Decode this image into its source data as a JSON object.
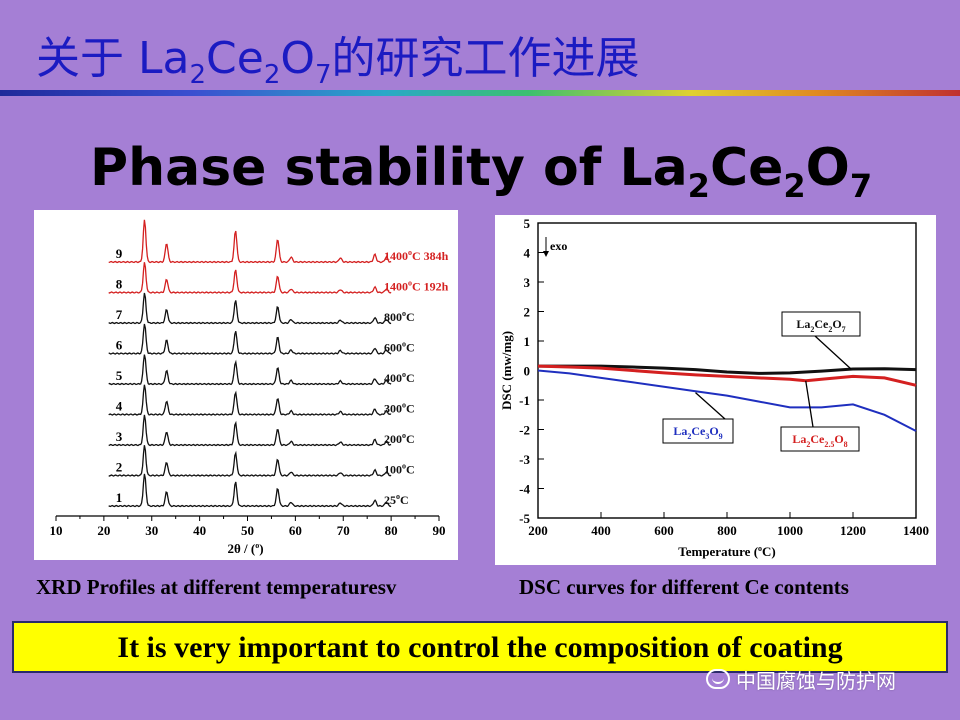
{
  "slide": {
    "title_pre": "关于 La",
    "title_s1": "2",
    "title_mid1": "Ce",
    "title_s2": "2",
    "title_mid2": "O",
    "title_s3": "7",
    "title_post": "的研究工作进展",
    "heading_pre": "Phase stability of La",
    "heading_s1": "2",
    "heading_mid1": "Ce",
    "heading_s2": "2",
    "heading_mid2": "O",
    "heading_s3": "7",
    "xrd_caption": "XRD Profiles at different temperaturesv",
    "dsc_caption": "DSC curves for different Ce contents",
    "banner": "It is very important to control the composition of coating",
    "watermark": "中国腐蚀与防护网"
  },
  "colors": {
    "background": "#a57fd5",
    "title": "#1b1bc2",
    "banner": "#ffff00",
    "xrd_black": "#111111",
    "xrd_red": "#d42020",
    "dsc_La2Ce2O7": "#111111",
    "dsc_La2Ce3O9": "#1f2fbf",
    "dsc_La2Ce2.5O8": "#d42020"
  },
  "icons": {
    "watermark": "wechat-icon"
  },
  "chart_data": [
    {
      "type": "line",
      "xlabel": "2θ / (°)",
      "xlim": [
        10,
        90
      ],
      "xticks": [
        10,
        20,
        30,
        40,
        50,
        60,
        70,
        80,
        90
      ],
      "peaks_2theta": [
        28.5,
        33.1,
        47.5,
        56.3,
        59.1,
        69.4,
        76.6,
        79.0
      ],
      "peak_heights": [
        1.0,
        0.45,
        0.75,
        0.55,
        0.12,
        0.1,
        0.18,
        0.12
      ],
      "series": [
        {
          "id": "1",
          "label": "25°C",
          "label_main": "25",
          "label_unit": "C",
          "color": "black"
        },
        {
          "id": "2",
          "label": "100°C",
          "label_main": "100",
          "label_unit": "C",
          "color": "black"
        },
        {
          "id": "3",
          "label": "200°C",
          "label_main": "200",
          "label_unit": "C",
          "color": "black"
        },
        {
          "id": "4",
          "label": "300°C",
          "label_main": "300",
          "label_unit": "C",
          "color": "black"
        },
        {
          "id": "5",
          "label": "400°C",
          "label_main": "400",
          "label_unit": "C",
          "color": "black"
        },
        {
          "id": "6",
          "label": "600°C",
          "label_main": "600",
          "label_unit": "C",
          "color": "black"
        },
        {
          "id": "7",
          "label": "800°C",
          "label_main": "800",
          "label_unit": "C",
          "color": "black"
        },
        {
          "id": "8",
          "label": "1400°C 192h",
          "label_main": "1400",
          "label_unit": "C 192h",
          "color": "red"
        },
        {
          "id": "9",
          "label": "1400°C 384h",
          "label_main": "1400",
          "label_unit": "C 384h",
          "color": "red"
        }
      ]
    },
    {
      "type": "line",
      "xlabel": "Temperature (°C)",
      "xlabel_pre": "Temperature (",
      "xlabel_post": "C)",
      "ylabel": "DSC (mw/mg)",
      "xlim": [
        200,
        1400
      ],
      "ylim": [
        -5,
        5
      ],
      "xticks": [
        200,
        400,
        600,
        800,
        1000,
        1200,
        1400
      ],
      "yticks": [
        -5,
        -4,
        -3,
        -2,
        -1,
        0,
        1,
        2,
        3,
        4,
        5
      ],
      "annotation": "exo",
      "series": [
        {
          "name": "La2Ce2O7",
          "color": "black",
          "x": [
            200,
            300,
            400,
            500,
            600,
            700,
            800,
            900,
            1000,
            1100,
            1200,
            1300,
            1400
          ],
          "y": [
            0.15,
            0.15,
            0.15,
            0.12,
            0.08,
            0.03,
            -0.05,
            -0.1,
            -0.08,
            -0.02,
            0.05,
            0.06,
            0.03
          ]
        },
        {
          "name": "La2Ce2.5O8",
          "color": "red",
          "x": [
            200,
            300,
            400,
            500,
            600,
            700,
            800,
            900,
            1000,
            1050,
            1100,
            1200,
            1300,
            1400
          ],
          "y": [
            0.15,
            0.12,
            0.08,
            0.0,
            -0.08,
            -0.15,
            -0.2,
            -0.25,
            -0.3,
            -0.35,
            -0.3,
            -0.2,
            -0.25,
            -0.5
          ]
        },
        {
          "name": "La2Ce3O9",
          "color": "blue",
          "x": [
            200,
            300,
            400,
            500,
            600,
            700,
            800,
            900,
            1000,
            1100,
            1200,
            1300,
            1400
          ],
          "y": [
            0.0,
            -0.1,
            -0.25,
            -0.4,
            -0.55,
            -0.7,
            -0.85,
            -1.05,
            -1.25,
            -1.25,
            -1.15,
            -1.5,
            -2.05
          ]
        }
      ],
      "legend_labels": [
        {
          "series": "La2Ce2O7",
          "parts": [
            "La",
            "2",
            "Ce",
            "2",
            "O",
            "7"
          ]
        },
        {
          "series": "La2Ce3O9",
          "parts": [
            "La",
            "2",
            "Ce",
            "3",
            "O",
            "9"
          ]
        },
        {
          "series": "La2Ce2.5O8",
          "parts": [
            "La",
            "2",
            "Ce",
            "2.5",
            "O",
            "8"
          ]
        }
      ]
    }
  ]
}
